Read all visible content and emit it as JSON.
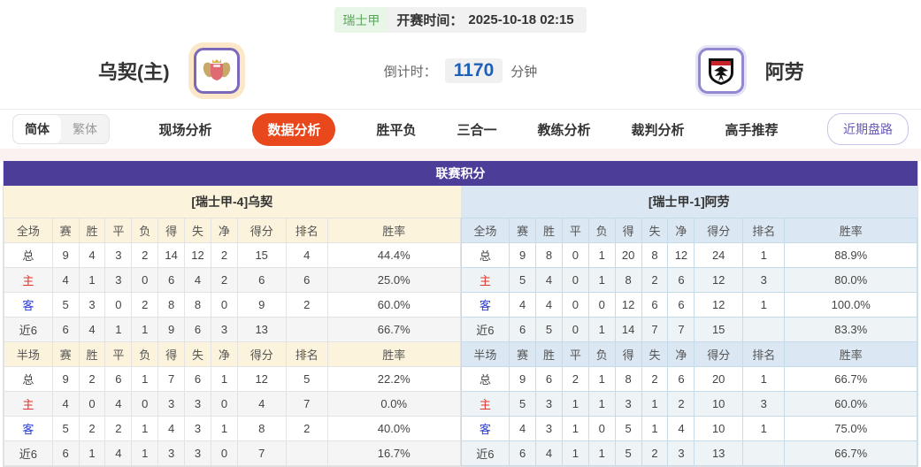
{
  "header": {
    "league_badge": "瑞士甲",
    "kickoff_label": "开赛时间：",
    "kickoff_time": "2025-10-18 02:15",
    "home_team": "乌契(主)",
    "away_team": "阿劳",
    "countdown_label": "倒计时：",
    "countdown_value": "1170",
    "countdown_unit": "分钟"
  },
  "nav": {
    "lang_toggle": [
      {
        "label": "简体",
        "active": true
      },
      {
        "label": "繁体",
        "active": false
      }
    ],
    "items": [
      {
        "label": "现场分析",
        "active": false
      },
      {
        "label": "数据分析",
        "active": true
      },
      {
        "label": "胜平负",
        "active": false
      },
      {
        "label": "三合一",
        "active": false
      },
      {
        "label": "教练分析",
        "active": false
      },
      {
        "label": "裁判分析",
        "active": false
      },
      {
        "label": "高手推荐",
        "active": false
      }
    ],
    "recent_button": "近期盘路"
  },
  "section_title": "联赛积分",
  "tables": {
    "home": {
      "team_header": "[瑞士甲-4]乌契",
      "full": {
        "columns": [
          "全场",
          "赛",
          "胜",
          "平",
          "负",
          "得",
          "失",
          "净",
          "得分",
          "排名",
          "胜率"
        ],
        "rows": [
          [
            "总",
            "9",
            "4",
            "3",
            "2",
            "14",
            "12",
            "2",
            "15",
            "4",
            "44.4%"
          ],
          [
            "主",
            "4",
            "1",
            "3",
            "0",
            "6",
            "4",
            "2",
            "6",
            "6",
            "25.0%"
          ],
          [
            "客",
            "5",
            "3",
            "0",
            "2",
            "8",
            "8",
            "0",
            "9",
            "2",
            "60.0%"
          ],
          [
            "近6",
            "6",
            "4",
            "1",
            "1",
            "9",
            "6",
            "3",
            "13",
            "",
            "66.7%"
          ]
        ]
      },
      "half": {
        "columns": [
          "半场",
          "赛",
          "胜",
          "平",
          "负",
          "得",
          "失",
          "净",
          "得分",
          "排名",
          "胜率"
        ],
        "rows": [
          [
            "总",
            "9",
            "2",
            "6",
            "1",
            "7",
            "6",
            "1",
            "12",
            "5",
            "22.2%"
          ],
          [
            "主",
            "4",
            "0",
            "4",
            "0",
            "3",
            "3",
            "0",
            "4",
            "7",
            "0.0%"
          ],
          [
            "客",
            "5",
            "2",
            "2",
            "1",
            "4",
            "3",
            "1",
            "8",
            "2",
            "40.0%"
          ],
          [
            "近6",
            "6",
            "1",
            "4",
            "1",
            "3",
            "3",
            "0",
            "7",
            "",
            "16.7%"
          ]
        ]
      }
    },
    "away": {
      "team_header": "[瑞士甲-1]阿劳",
      "full": {
        "columns": [
          "全场",
          "赛",
          "胜",
          "平",
          "负",
          "得",
          "失",
          "净",
          "得分",
          "排名",
          "胜率"
        ],
        "rows": [
          [
            "总",
            "9",
            "8",
            "0",
            "1",
            "20",
            "8",
            "12",
            "24",
            "1",
            "88.9%"
          ],
          [
            "主",
            "5",
            "4",
            "0",
            "1",
            "8",
            "2",
            "6",
            "12",
            "3",
            "80.0%"
          ],
          [
            "客",
            "4",
            "4",
            "0",
            "0",
            "12",
            "6",
            "6",
            "12",
            "1",
            "100.0%"
          ],
          [
            "近6",
            "6",
            "5",
            "0",
            "1",
            "14",
            "7",
            "7",
            "15",
            "",
            "83.3%"
          ]
        ]
      },
      "half": {
        "columns": [
          "半场",
          "赛",
          "胜",
          "平",
          "负",
          "得",
          "失",
          "净",
          "得分",
          "排名",
          "胜率"
        ],
        "rows": [
          [
            "总",
            "9",
            "6",
            "2",
            "1",
            "8",
            "2",
            "6",
            "20",
            "1",
            "66.7%"
          ],
          [
            "主",
            "5",
            "3",
            "1",
            "1",
            "3",
            "1",
            "2",
            "10",
            "3",
            "60.0%"
          ],
          [
            "客",
            "4",
            "3",
            "1",
            "0",
            "5",
            "1",
            "4",
            "10",
            "1",
            "75.0%"
          ],
          [
            "近6",
            "6",
            "4",
            "1",
            "1",
            "5",
            "2",
            "3",
            "13",
            "",
            "66.7%"
          ]
        ]
      }
    }
  },
  "icons": {
    "home_logo": "home-team-crest-icon",
    "away_logo": "away-team-crest-icon"
  },
  "colors": {
    "section_purple": "#4c3d99",
    "active_tab_red": "#e8481c",
    "home_panel_cream": "#fcf3dc",
    "away_panel_blue": "#dbe7f2",
    "home_row_label_red": "#e0342c",
    "away_row_label_blue": "#2a3cd4",
    "countdown_blue": "#1f5fb8",
    "league_badge_green": "#57a65a"
  }
}
